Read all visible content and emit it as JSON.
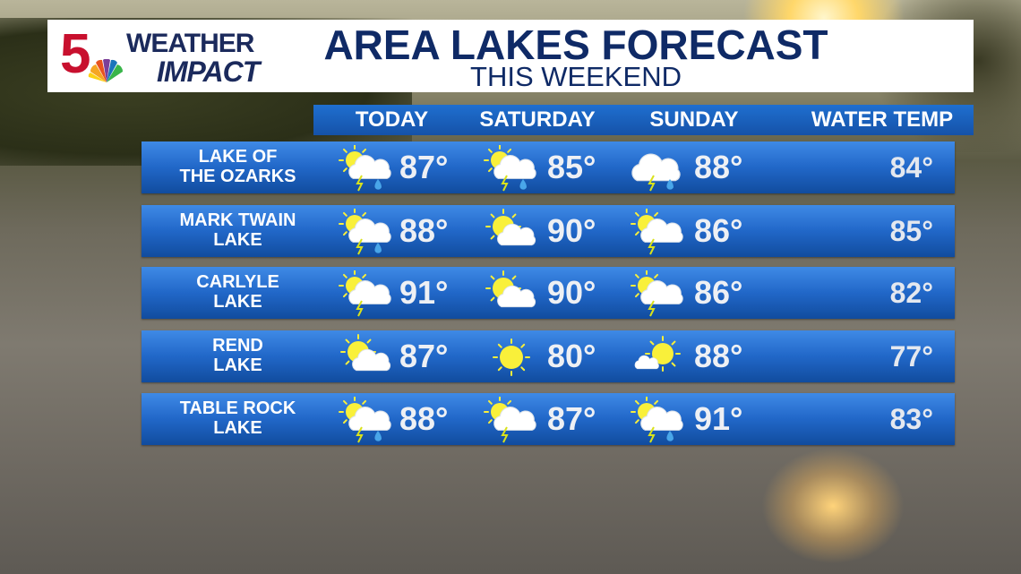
{
  "header": {
    "logo_number": "5",
    "logo_line1": "WEATHER",
    "logo_line2": "IMPACT",
    "title": "AREA LAKES FORECAST",
    "subtitle": "THIS WEEKEND"
  },
  "columns": [
    "TODAY",
    "SATURDAY",
    "SUNDAY",
    "WATER TEMP"
  ],
  "colors": {
    "title": "#0f2a66",
    "row_blue": "#2167c8",
    "sun": "#f9f03a",
    "logo_red": "#c8102e"
  },
  "lakes": [
    {
      "name": "LAKE OF\nTHE OZARKS",
      "days": [
        {
          "icon": "partly-sunny-thunderstorm-rain-icon",
          "temp": "87°"
        },
        {
          "icon": "partly-sunny-thunderstorm-rain-icon",
          "temp": "85°"
        },
        {
          "icon": "cloudy-thunderstorm-rain-icon",
          "temp": "88°"
        }
      ],
      "water_temp": "84°"
    },
    {
      "name": "MARK TWAIN\nLAKE",
      "days": [
        {
          "icon": "partly-sunny-thunderstorm-rain-icon",
          "temp": "88°"
        },
        {
          "icon": "partly-sunny-icon",
          "temp": "90°"
        },
        {
          "icon": "partly-sunny-thunderstorm-icon",
          "temp": "86°"
        }
      ],
      "water_temp": "85°"
    },
    {
      "name": "CARLYLE\nLAKE",
      "days": [
        {
          "icon": "partly-sunny-thunderstorm-icon",
          "temp": "91°"
        },
        {
          "icon": "partly-sunny-icon",
          "temp": "90°"
        },
        {
          "icon": "partly-sunny-thunderstorm-icon",
          "temp": "86°"
        }
      ],
      "water_temp": "82°"
    },
    {
      "name": "REND\nLAKE",
      "days": [
        {
          "icon": "partly-sunny-icon",
          "temp": "87°"
        },
        {
          "icon": "sunny-icon",
          "temp": "80°"
        },
        {
          "icon": "mostly-sunny-icon",
          "temp": "88°"
        }
      ],
      "water_temp": "77°"
    },
    {
      "name": "TABLE ROCK\nLAKE",
      "days": [
        {
          "icon": "partly-sunny-thunderstorm-rain-icon",
          "temp": "88°"
        },
        {
          "icon": "partly-sunny-thunderstorm-icon",
          "temp": "87°"
        },
        {
          "icon": "partly-sunny-thunderstorm-rain-icon",
          "temp": "91°"
        }
      ],
      "water_temp": "83°"
    }
  ]
}
